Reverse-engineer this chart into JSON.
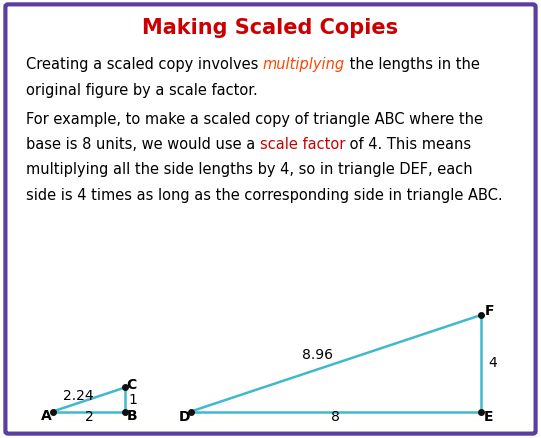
{
  "title": "Making Scaled Copies",
  "title_color": "#CC0000",
  "title_fontsize": 15,
  "bg_color": "#FFFFFF",
  "border_color": "#5B3FA0",
  "border_linewidth": 3,
  "text_fontsize": 10.5,
  "label_fontsize": 10,
  "edge_label_fontsize": 10,
  "triangle_color": "#40B8D0",
  "triangle_linewidth": 1.8,
  "small": {
    "A": [
      1.0,
      0.0
    ],
    "B": [
      3.0,
      0.0
    ],
    "C": [
      3.0,
      1.0
    ]
  },
  "large": {
    "D": [
      4.8,
      0.0
    ],
    "E": [
      12.8,
      0.0
    ],
    "F": [
      12.8,
      4.0
    ]
  }
}
